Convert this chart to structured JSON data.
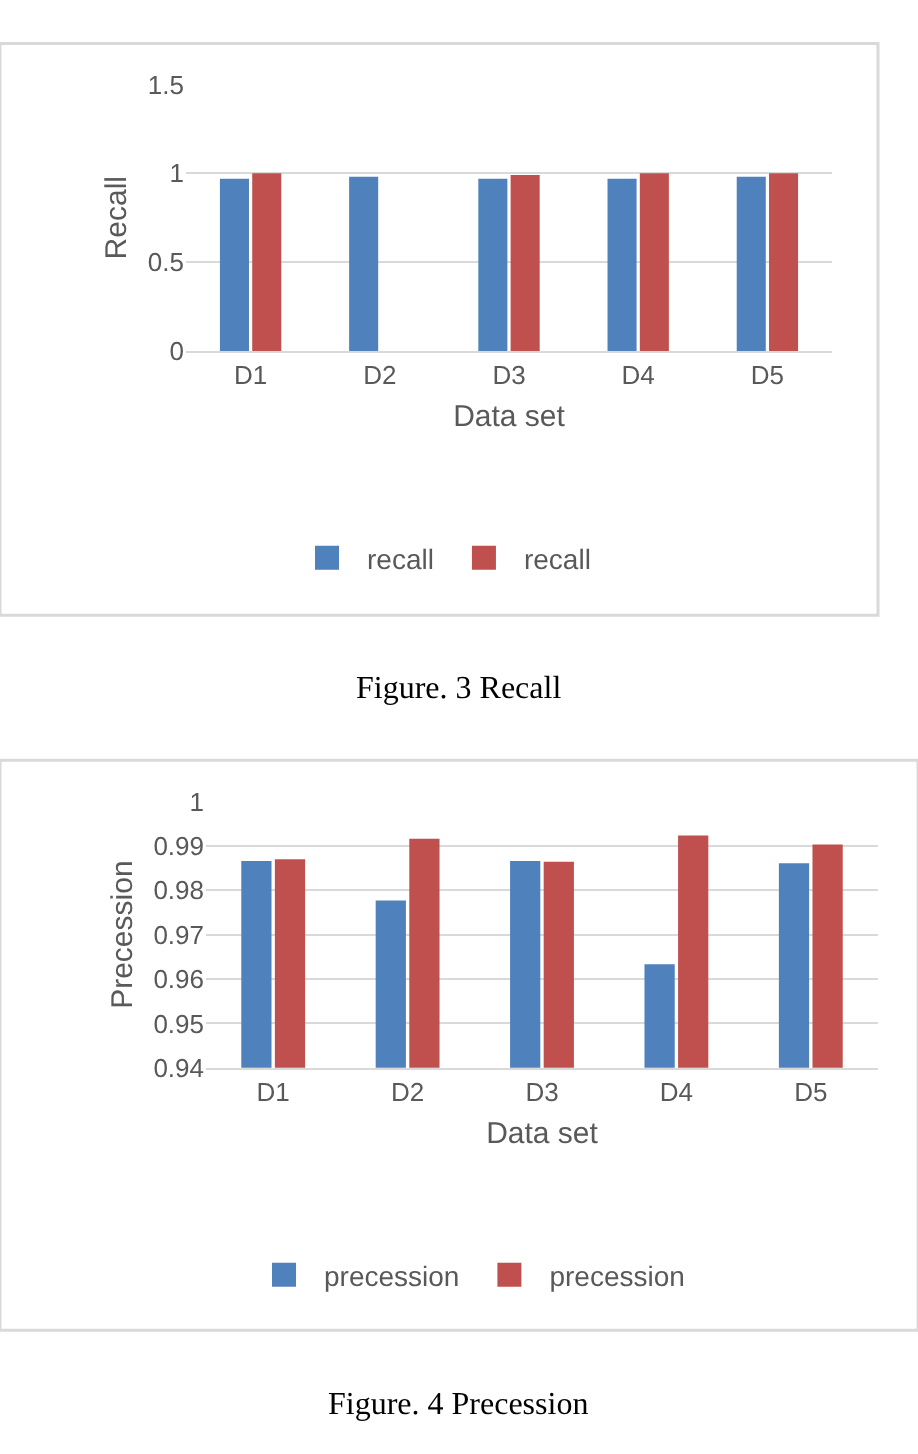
{
  "chart_data": [
    {
      "type": "bar",
      "categories": [
        "D1",
        "D2",
        "D3",
        "D4",
        "D5"
      ],
      "xlabel": "Data set",
      "ylabel": "Recall",
      "series": [
        {
          "name": "recall",
          "color": "#4f81bd",
          "values": [
            0.97,
            0.98,
            0.97,
            0.97,
            0.98
          ]
        },
        {
          "name": "recall",
          "color": "#c0504d",
          "values": [
            1.0,
            null,
            0.99,
            1.0,
            1.0
          ]
        }
      ],
      "ylim": [
        0,
        1.5
      ],
      "yticks": [
        0,
        0.5,
        1,
        1.5
      ],
      "grid": "y",
      "legend": "bottom",
      "annotations": [
        "Figure. 3 Recall"
      ]
    },
    {
      "type": "bar",
      "categories": [
        "D1",
        "D2",
        "D3",
        "D4",
        "D5"
      ],
      "xlabel": "Data set",
      "ylabel": "Precession",
      "series": [
        {
          "name": "precession",
          "color": "#4f81bd",
          "values": [
            0.9866,
            0.9777,
            0.9866,
            0.9633,
            0.9861
          ]
        },
        {
          "name": "precession",
          "color": "#c0504d",
          "values": [
            0.987,
            0.9916,
            0.9864,
            0.9923,
            0.9903
          ]
        }
      ],
      "ylim": [
        0.94,
        1
      ],
      "yticks": [
        0.94,
        0.95,
        0.96,
        0.97,
        0.98,
        0.99,
        1
      ],
      "grid": "y",
      "legend": "bottom",
      "annotations": [
        "Figure. 4 Precession"
      ]
    }
  ]
}
